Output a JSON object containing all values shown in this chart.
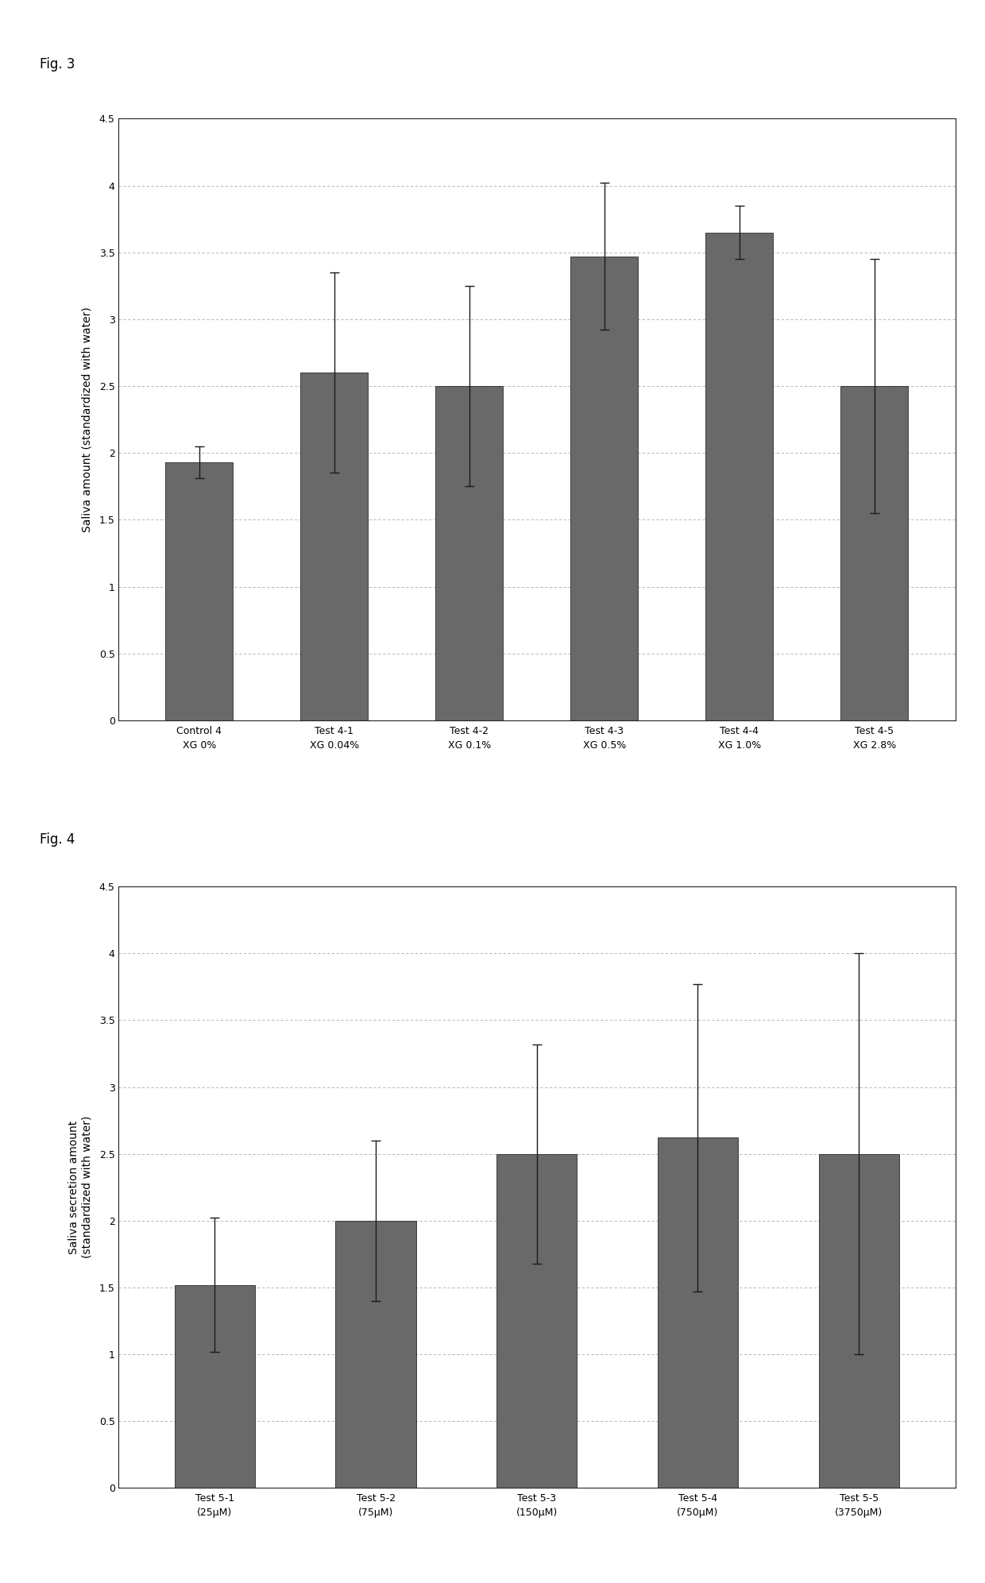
{
  "fig3": {
    "categories_line1": [
      "Control 4",
      "Test 4-1",
      "Test 4-2",
      "Test 4-3",
      "Test 4-4",
      "Test 4-5"
    ],
    "categories_line2": [
      "XG 0%",
      "XG 0.04%",
      "XG 0.1%",
      "XG 0.5%",
      "XG 1.0%",
      "XG 2.8%"
    ],
    "values": [
      1.93,
      2.6,
      2.5,
      3.47,
      3.65,
      2.5
    ],
    "errors": [
      0.12,
      0.75,
      0.75,
      0.55,
      0.2,
      0.95
    ],
    "ylabel": "Saliva amount (standardized with water)",
    "ylim": [
      0,
      4.5
    ],
    "yticks": [
      0,
      0.5,
      1.0,
      1.5,
      2.0,
      2.5,
      3.0,
      3.5,
      4.0,
      4.5
    ],
    "fig_label": "Fig. 3"
  },
  "fig4": {
    "categories_line1": [
      "Test 5-1",
      "Test 5-2",
      "Test 5-3",
      "Test 5-4",
      "Test 5-5"
    ],
    "categories_line2": [
      "(25μM)",
      "(75μM)",
      "(150μM)",
      "(750μM)",
      "(3750μM)"
    ],
    "values": [
      1.52,
      2.0,
      2.5,
      2.62,
      2.5
    ],
    "errors": [
      0.5,
      0.6,
      0.82,
      1.15,
      1.5
    ],
    "ylabel": "Saliva secretion amount\n(standardized with water)",
    "ylim": [
      0,
      4.5
    ],
    "yticks": [
      0,
      0.5,
      1.0,
      1.5,
      2.0,
      2.5,
      3.0,
      3.5,
      4.0,
      4.5
    ],
    "fig_label": "Fig. 4"
  },
  "bar_color": "#696969",
  "bar_edge_color": "#2a2a2a",
  "background_color": "#ffffff",
  "plot_bg_color": "#ffffff",
  "grid_color": "#aaaaaa",
  "error_color": "#1a1a1a",
  "fontsize_ylabel": 10,
  "fontsize_tick": 9,
  "fontsize_fig_label": 12,
  "fontsize_xticklabel": 9
}
